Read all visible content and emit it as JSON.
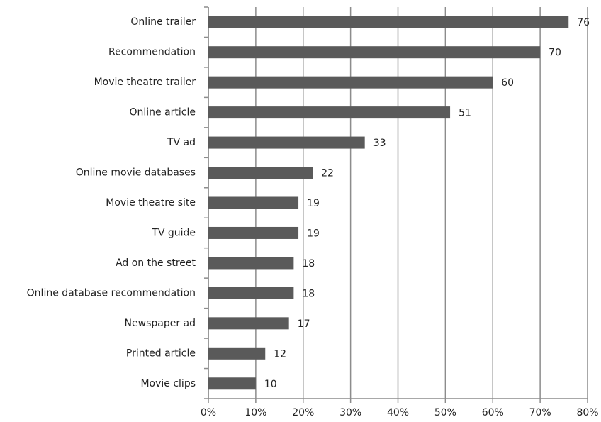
{
  "chart_data": {
    "type": "bar",
    "orientation": "horizontal",
    "categories": [
      "Online trailer",
      "Recommendation",
      "Movie theatre trailer",
      "Online article",
      "TV ad",
      "Online movie databases",
      "Movie theatre site",
      "TV guide",
      "Ad on the street",
      "Online database recommendation",
      "Newspaper ad",
      "Printed article",
      "Movie clips"
    ],
    "values": [
      76,
      70,
      60,
      51,
      33,
      22,
      19,
      19,
      18,
      18,
      17,
      12,
      10
    ],
    "color": "#5a5a5a",
    "xlim": [
      0,
      80
    ],
    "xticks": [
      {
        "value": 0,
        "label": "0%"
      },
      {
        "value": 10,
        "label": "10%"
      },
      {
        "value": 20,
        "label": "20%"
      },
      {
        "value": 30,
        "label": "30%"
      },
      {
        "value": 40,
        "label": "40%"
      },
      {
        "value": 50,
        "label": "50%"
      },
      {
        "value": 60,
        "label": "60%"
      },
      {
        "value": 70,
        "label": "70%"
      },
      {
        "value": 80,
        "label": "80%"
      }
    ],
    "grid": true
  }
}
